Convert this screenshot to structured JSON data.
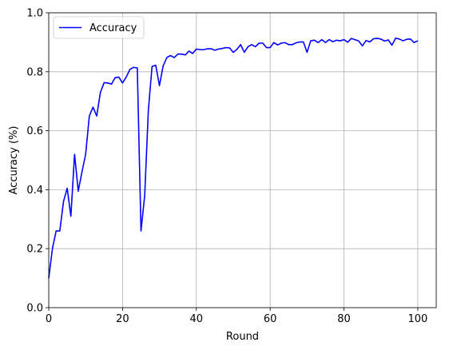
{
  "chart_data": {
    "type": "line",
    "xlabel": "Round",
    "ylabel": "Accuracy (%)",
    "xlim": [
      0,
      105
    ],
    "ylim": [
      0.0,
      1.0
    ],
    "xticks": [
      "0",
      "20",
      "40",
      "60",
      "80",
      "100"
    ],
    "yticks": [
      "0.0",
      "0.2",
      "0.4",
      "0.6",
      "0.8",
      "1.0"
    ],
    "grid": true,
    "legend": {
      "placement": "top-left",
      "entries": [
        "Accuracy"
      ]
    },
    "series": [
      {
        "name": "Accuracy",
        "color": "#0000ff",
        "x": [
          0,
          1,
          2,
          3,
          4,
          5,
          6,
          7,
          8,
          9,
          10,
          11,
          12,
          13,
          14,
          15,
          16,
          17,
          18,
          19,
          20,
          21,
          22,
          23,
          24,
          25,
          26,
          27,
          28,
          29,
          30,
          31,
          32,
          33,
          34,
          35,
          36,
          37,
          38,
          39,
          40,
          41,
          42,
          43,
          44,
          45,
          46,
          47,
          48,
          49,
          50,
          51,
          52,
          53,
          54,
          55,
          56,
          57,
          58,
          59,
          60,
          61,
          62,
          63,
          64,
          65,
          66,
          67,
          68,
          69,
          70,
          71,
          72,
          73,
          74,
          75,
          76,
          77,
          78,
          79,
          80,
          81,
          82,
          83,
          84,
          85,
          86,
          87,
          88,
          89,
          90,
          91,
          92,
          93,
          94,
          95,
          96,
          97,
          98,
          99,
          100
        ],
        "values": [
          0.1,
          0.2,
          0.26,
          0.26,
          0.36,
          0.405,
          0.31,
          0.52,
          0.395,
          0.46,
          0.52,
          0.65,
          0.68,
          0.65,
          0.73,
          0.763,
          0.762,
          0.758,
          0.78,
          0.782,
          0.762,
          0.782,
          0.808,
          0.815,
          0.813,
          0.26,
          0.38,
          0.67,
          0.818,
          0.822,
          0.753,
          0.82,
          0.848,
          0.855,
          0.848,
          0.86,
          0.86,
          0.857,
          0.87,
          0.862,
          0.877,
          0.875,
          0.875,
          0.878,
          0.878,
          0.873,
          0.877,
          0.879,
          0.882,
          0.881,
          0.866,
          0.876,
          0.892,
          0.866,
          0.885,
          0.892,
          0.885,
          0.897,
          0.897,
          0.882,
          0.882,
          0.899,
          0.891,
          0.897,
          0.899,
          0.892,
          0.892,
          0.898,
          0.901,
          0.901,
          0.866,
          0.905,
          0.907,
          0.899,
          0.909,
          0.899,
          0.909,
          0.902,
          0.907,
          0.905,
          0.909,
          0.9,
          0.913,
          0.909,
          0.904,
          0.888,
          0.906,
          0.901,
          0.912,
          0.913,
          0.911,
          0.904,
          0.908,
          0.89,
          0.914,
          0.911,
          0.905,
          0.91,
          0.911,
          0.899,
          0.905
        ]
      }
    ]
  }
}
